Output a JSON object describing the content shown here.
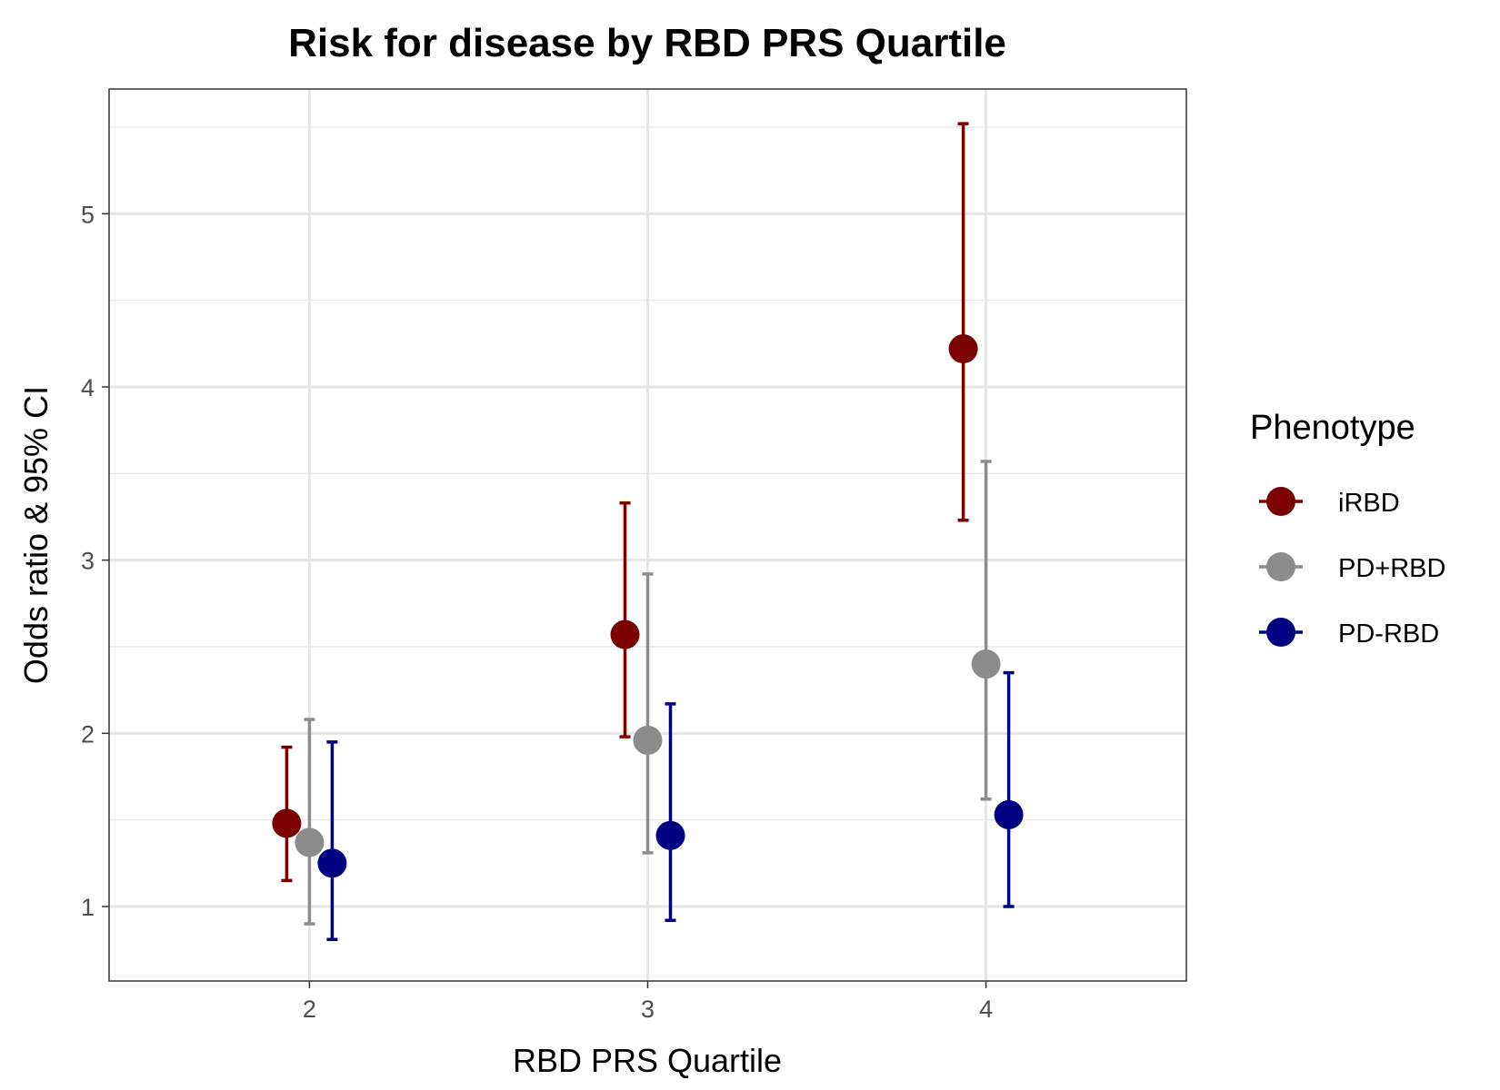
{
  "chart_data": {
    "type": "scatter",
    "title": "Risk for disease by RBD PRS Quartile",
    "xlabel": "RBD PRS Quartile",
    "ylabel": "Odds ratio & 95% CI",
    "categories": [
      "2",
      "3",
      "4"
    ],
    "yticks": [
      "1",
      "2",
      "3",
      "4",
      "5"
    ],
    "ylim": [
      0.57,
      5.72
    ],
    "grid": true,
    "legend": {
      "title": "Phenotype",
      "placement": "right"
    },
    "series": [
      {
        "name": "iRBD",
        "color": "#7a0000",
        "points": [
          {
            "x": "2",
            "y": 1.48,
            "lower": 1.15,
            "upper": 1.92
          },
          {
            "x": "3",
            "y": 2.57,
            "lower": 1.98,
            "upper": 3.33
          },
          {
            "x": "4",
            "y": 4.22,
            "lower": 3.23,
            "upper": 5.52
          }
        ]
      },
      {
        "name": "PD+RBD",
        "color": "#8c8c8c",
        "points": [
          {
            "x": "2",
            "y": 1.37,
            "lower": 0.9,
            "upper": 2.08
          },
          {
            "x": "3",
            "y": 1.96,
            "lower": 1.31,
            "upper": 2.92
          },
          {
            "x": "4",
            "y": 2.4,
            "lower": 1.62,
            "upper": 3.57
          }
        ]
      },
      {
        "name": "PD-RBD",
        "color": "#000080",
        "points": [
          {
            "x": "2",
            "y": 1.25,
            "lower": 0.81,
            "upper": 1.95
          },
          {
            "x": "3",
            "y": 1.41,
            "lower": 0.92,
            "upper": 2.17
          },
          {
            "x": "4",
            "y": 1.53,
            "lower": 1.0,
            "upper": 2.35
          }
        ]
      }
    ]
  }
}
